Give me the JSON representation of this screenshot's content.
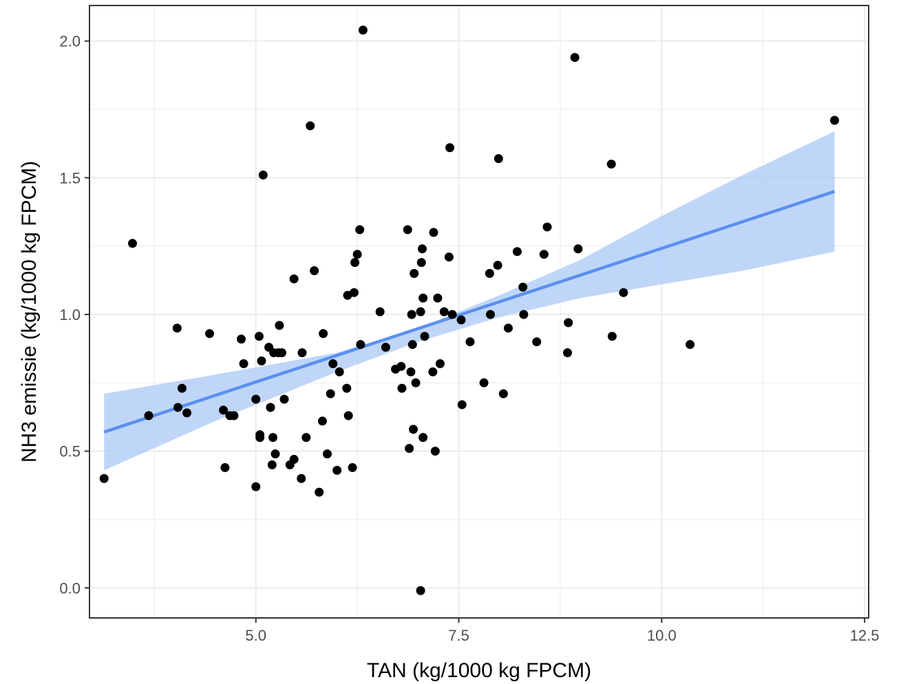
{
  "chart_data": {
    "type": "scatter",
    "xlabel": "TAN (kg/1000 kg FPCM)",
    "ylabel": "NH3 emissie (kg/1000 kg FPCM)",
    "xlim": [
      2.95,
      12.55
    ],
    "ylim": [
      -0.11,
      2.13
    ],
    "x_ticks": [
      5.0,
      7.5,
      10.0,
      12.5
    ],
    "x_tick_labels": [
      "5.0",
      "7.5",
      "10.0",
      "12.5"
    ],
    "y_ticks": [
      0.0,
      0.5,
      1.0,
      1.5,
      2.0
    ],
    "y_tick_labels": [
      "0.0",
      "0.5",
      "1.0",
      "1.5",
      "2.0"
    ],
    "grid": true,
    "colors": {
      "points": "#000000",
      "fit_line": "#5b8ff0",
      "confidence_band": "#a9c8f7",
      "gridline": "#ebebeb",
      "panel_border": "#333333"
    },
    "points": [
      [
        3.13,
        0.4
      ],
      [
        3.48,
        1.26
      ],
      [
        3.68,
        0.63
      ],
      [
        4.03,
        0.95
      ],
      [
        4.04,
        0.66
      ],
      [
        4.09,
        0.73
      ],
      [
        4.15,
        0.64
      ],
      [
        4.43,
        0.93
      ],
      [
        4.6,
        0.65
      ],
      [
        4.62,
        0.44
      ],
      [
        4.68,
        0.63
      ],
      [
        4.73,
        0.63
      ],
      [
        4.82,
        0.91
      ],
      [
        4.85,
        0.82
      ],
      [
        5.0,
        0.69
      ],
      [
        5.0,
        0.37
      ],
      [
        5.04,
        0.92
      ],
      [
        5.05,
        0.56
      ],
      [
        5.05,
        0.55
      ],
      [
        5.07,
        0.83
      ],
      [
        5.09,
        1.51
      ],
      [
        5.16,
        0.88
      ],
      [
        5.18,
        0.66
      ],
      [
        5.18,
        0.66
      ],
      [
        5.2,
        0.45
      ],
      [
        5.21,
        0.55
      ],
      [
        5.22,
        0.86
      ],
      [
        5.24,
        0.49
      ],
      [
        5.28,
        0.86
      ],
      [
        5.29,
        0.96
      ],
      [
        5.32,
        0.86
      ],
      [
        5.35,
        0.69
      ],
      [
        5.42,
        0.45
      ],
      [
        5.47,
        0.47
      ],
      [
        5.47,
        1.13
      ],
      [
        5.56,
        0.4
      ],
      [
        5.57,
        0.86
      ],
      [
        5.62,
        0.55
      ],
      [
        5.67,
        1.69
      ],
      [
        5.72,
        1.16
      ],
      [
        5.78,
        0.35
      ],
      [
        5.82,
        0.61
      ],
      [
        5.83,
        0.93
      ],
      [
        5.88,
        0.49
      ],
      [
        5.92,
        0.71
      ],
      [
        5.95,
        0.82
      ],
      [
        6.0,
        0.43
      ],
      [
        6.03,
        0.79
      ],
      [
        6.12,
        0.73
      ],
      [
        6.13,
        1.07
      ],
      [
        6.14,
        0.63
      ],
      [
        6.19,
        0.44
      ],
      [
        6.21,
        1.08
      ],
      [
        6.22,
        1.19
      ],
      [
        6.25,
        1.22
      ],
      [
        6.28,
        1.31
      ],
      [
        6.29,
        0.89
      ],
      [
        6.32,
        2.04
      ],
      [
        6.53,
        1.01
      ],
      [
        6.6,
        0.88
      ],
      [
        6.72,
        0.8
      ],
      [
        6.79,
        0.81
      ],
      [
        6.8,
        0.73
      ],
      [
        6.87,
        1.31
      ],
      [
        6.89,
        0.51
      ],
      [
        6.91,
        0.79
      ],
      [
        6.92,
        1.0
      ],
      [
        6.93,
        0.89
      ],
      [
        6.94,
        0.58
      ],
      [
        6.95,
        1.15
      ],
      [
        6.97,
        0.75
      ],
      [
        7.03,
        -0.01
      ],
      [
        7.03,
        1.01
      ],
      [
        7.04,
        1.19
      ],
      [
        7.05,
        1.24
      ],
      [
        7.06,
        1.06
      ],
      [
        7.06,
        0.55
      ],
      [
        7.08,
        0.92
      ],
      [
        7.18,
        0.79
      ],
      [
        7.19,
        1.3
      ],
      [
        7.21,
        0.5
      ],
      [
        7.24,
        1.06
      ],
      [
        7.27,
        0.82
      ],
      [
        7.32,
        1.01
      ],
      [
        7.38,
        1.21
      ],
      [
        7.39,
        1.61
      ],
      [
        7.42,
        1.0
      ],
      [
        7.53,
        0.98
      ],
      [
        7.54,
        0.67
      ],
      [
        7.64,
        0.9
      ],
      [
        7.81,
        0.75
      ],
      [
        7.88,
        1.15
      ],
      [
        7.89,
        1.0
      ],
      [
        7.98,
        1.18
      ],
      [
        7.99,
        1.57
      ],
      [
        8.05,
        0.71
      ],
      [
        8.11,
        0.95
      ],
      [
        8.22,
        1.23
      ],
      [
        8.29,
        1.1
      ],
      [
        8.3,
        1.0
      ],
      [
        8.46,
        0.9
      ],
      [
        8.55,
        1.22
      ],
      [
        8.59,
        1.32
      ],
      [
        8.84,
        0.86
      ],
      [
        8.85,
        0.97
      ],
      [
        8.93,
        1.94
      ],
      [
        8.97,
        1.24
      ],
      [
        9.38,
        1.55
      ],
      [
        9.39,
        0.92
      ],
      [
        9.53,
        1.08
      ],
      [
        10.35,
        0.89
      ],
      [
        12.13,
        1.71
      ]
    ],
    "fit_line": {
      "x": [
        3.13,
        12.13
      ],
      "y": [
        0.57,
        1.45
      ]
    },
    "confidence_band": {
      "x": [
        3.13,
        4.5,
        6.0,
        7.0,
        8.0,
        9.0,
        10.0,
        11.0,
        12.13
      ],
      "lower": [
        0.43,
        0.61,
        0.79,
        0.9,
        0.99,
        1.06,
        1.11,
        1.16,
        1.23
      ],
      "upper": [
        0.71,
        0.78,
        0.86,
        0.95,
        1.07,
        1.2,
        1.36,
        1.51,
        1.67
      ]
    }
  }
}
